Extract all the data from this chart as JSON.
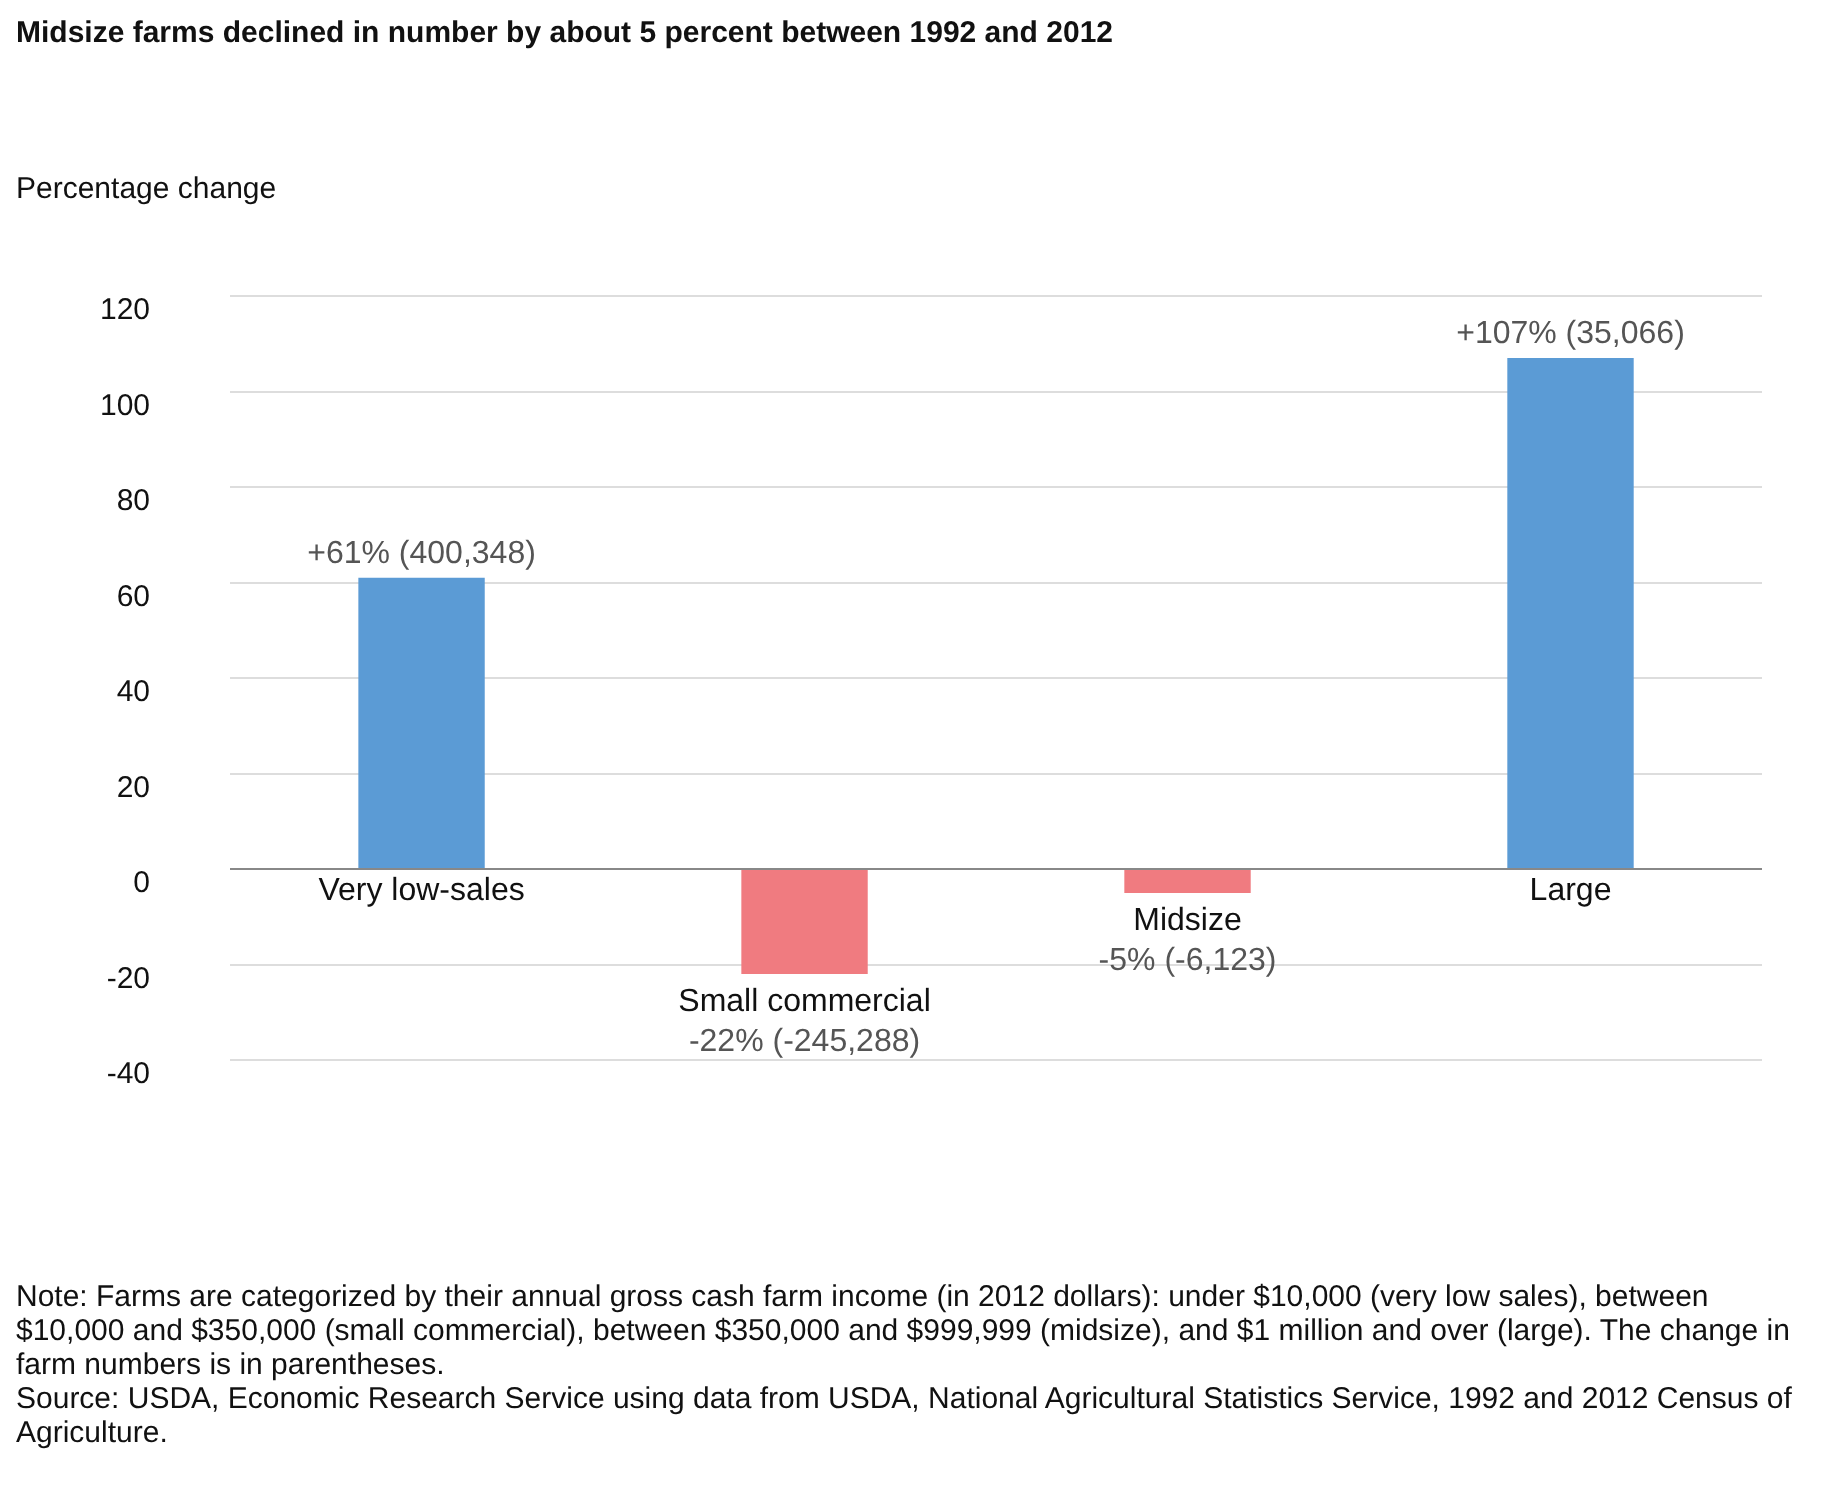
{
  "chart_data": {
    "type": "bar",
    "title": "Midsize farms declined in number by about 5 percent between 1992 and 2012",
    "ylabel": "Percentage change",
    "categories": [
      "Very low-sales",
      "Small commercial",
      "Midsize",
      "Large"
    ],
    "values": [
      61,
      -22,
      -5,
      107
    ],
    "colors": [
      "#5b9bd5",
      "#f07b80",
      "#f07b80",
      "#5b9bd5"
    ],
    "value_labels": [
      "+61% (400,348)",
      "-22% (-245,288)",
      "-5% (-6,123)",
      "+107% (35,066)"
    ],
    "ylim": [
      -40,
      120
    ],
    "yticks": [
      -40,
      -20,
      0,
      20,
      40,
      60,
      80,
      100,
      120
    ],
    "grid": "y",
    "annotations": [
      "Note: Farms are categorized by their annual gross cash farm income (in 2012 dollars): under $10,000 (very low sales), between $10,000 and $350,000 (small commercial), between $350,000 and $999,999 (midsize), and $1 million and over (large). The change in farm numbers is in parentheses.",
      "Source: USDA, Economic Research Service using data from USDA, National Agricultural Statistics Service, 1992 and 2012 Census of Agriculture."
    ]
  }
}
